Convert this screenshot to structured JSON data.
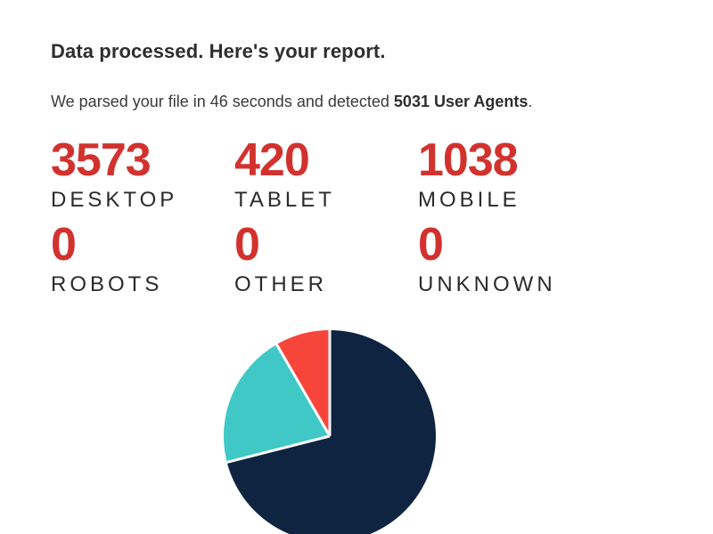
{
  "page": {
    "title": "Data processed. Here's your report.",
    "subtitle_prefix": "We parsed your file in 46 seconds and detected ",
    "subtitle_bold": "5031 User Agents",
    "subtitle_suffix": "."
  },
  "stats": [
    {
      "value": "3573",
      "label": "DESKTOP"
    },
    {
      "value": "420",
      "label": "TABLET"
    },
    {
      "value": "1038",
      "label": "MOBILE"
    },
    {
      "value": "0",
      "label": "ROBOTS"
    },
    {
      "value": "0",
      "label": "OTHER"
    },
    {
      "value": "0",
      "label": "UNKNOWN"
    }
  ],
  "colors": {
    "stat_number": "#d2322e",
    "text_dark": "#2e2e2e",
    "pie_separator": "#ffffff"
  },
  "chart_data": {
    "type": "pie",
    "title": "",
    "total_label": "5031 User Agents",
    "total": 5031,
    "start_angle_deg": 0,
    "direction": "clockwise",
    "legend": "none",
    "segments": [
      {
        "label": "Desktop",
        "value": 3573,
        "color": "#0e2440"
      },
      {
        "label": "Mobile",
        "value": 1038,
        "color": "#3fc8c6"
      },
      {
        "label": "Tablet",
        "value": 420,
        "color": "#f8453b"
      },
      {
        "label": "Robots",
        "value": 0,
        "color": "#0e2440"
      },
      {
        "label": "Other",
        "value": 0,
        "color": "#0e2440"
      },
      {
        "label": "Unknown",
        "value": 0,
        "color": "#0e2440"
      }
    ]
  }
}
